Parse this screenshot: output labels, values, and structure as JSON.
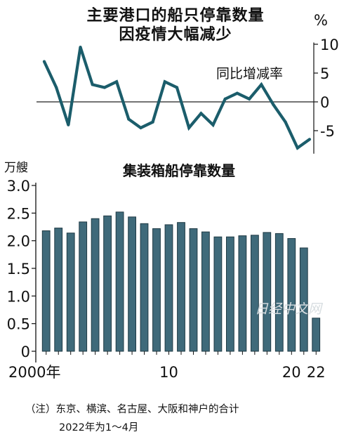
{
  "title_line1": "主要港口的船只停靠数量",
  "title_line2": "因疫情大幅减少",
  "watermark": "日经中文网",
  "colors": {
    "line": "#1b5d6b",
    "bar": "#3f6a7a",
    "zero_line": "#222222"
  },
  "note_line1": "（注）东京、横滨、名古屋、大阪和神户的合计",
  "note_line2": "2022年为1～4月",
  "chart_data": [
    {
      "type": "line",
      "ylabel": "%",
      "series_label": "同比增减率",
      "ylim": [
        -9,
        10
      ],
      "yticks": [
        10,
        5,
        0,
        -5
      ],
      "zero_line": true,
      "x": [
        2000,
        2001,
        2002,
        2003,
        2004,
        2005,
        2006,
        2007,
        2008,
        2009,
        2010,
        2011,
        2012,
        2013,
        2014,
        2015,
        2016,
        2017,
        2018,
        2019,
        2020,
        2021,
        2022
      ],
      "values": [
        7.0,
        2.5,
        -4.0,
        9.5,
        3.0,
        2.5,
        3.5,
        -3.0,
        -4.5,
        -3.5,
        3.5,
        2.5,
        -4.5,
        -2.0,
        -4.0,
        0.5,
        1.5,
        0.5,
        3.0,
        -0.5,
        -3.5,
        -8.0,
        -6.5
      ]
    },
    {
      "type": "bar",
      "title": "集装箱船停靠数量",
      "ylabel": "万艘",
      "ylim": [
        0,
        3.0
      ],
      "yticks": [
        "3.0",
        "2.5",
        "2.0",
        "1.5",
        "1.0",
        "0.5",
        "0"
      ],
      "x_tick_labels": [
        {
          "index": 0,
          "label": "2000年"
        },
        {
          "index": 10,
          "label": "10"
        },
        {
          "index": 20,
          "label": "20"
        },
        {
          "index": 22,
          "label": "22"
        }
      ],
      "categories": [
        2000,
        2001,
        2002,
        2003,
        2004,
        2005,
        2006,
        2007,
        2008,
        2009,
        2010,
        2011,
        2012,
        2013,
        2014,
        2015,
        2016,
        2017,
        2018,
        2019,
        2020,
        2021,
        2022
      ],
      "values": [
        2.18,
        2.23,
        2.14,
        2.34,
        2.4,
        2.45,
        2.52,
        2.43,
        2.31,
        2.22,
        2.29,
        2.33,
        2.22,
        2.16,
        2.07,
        2.07,
        2.09,
        2.1,
        2.15,
        2.13,
        2.04,
        1.87,
        0.6
      ]
    }
  ]
}
